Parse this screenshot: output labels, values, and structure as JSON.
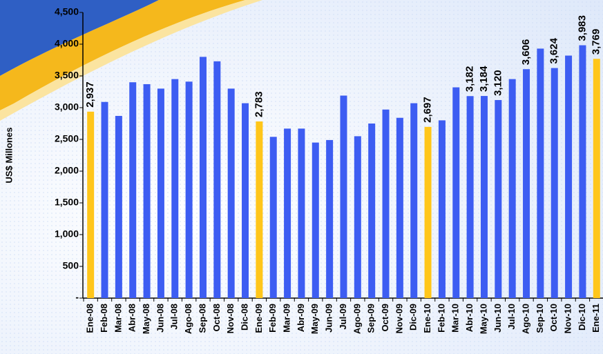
{
  "chart_data": {
    "type": "bar",
    "y_label": "US$ Millones",
    "categories": [
      "Ene-08",
      "Feb-08",
      "Mar-08",
      "Abr-08",
      "May-08",
      "Jun-08",
      "Jul-08",
      "Ago-08",
      "Sep-08",
      "Oct-08",
      "Nov-08",
      "Dic-08",
      "Ene-09",
      "Feb-09",
      "Mar-09",
      "Abr-09",
      "May-09",
      "Jun-09",
      "Jul-09",
      "Ago-09",
      "Sep-09",
      "Oct-09",
      "Nov-09",
      "Dic-09",
      "Ene-10",
      "Feb-10",
      "Mar-10",
      "Abr-10",
      "May-10",
      "Jun-10",
      "Jul-10",
      "Ago-10",
      "Sep-10",
      "Oct-10",
      "Nov-10",
      "Dic-10",
      "Ene-11"
    ],
    "values": [
      2937,
      3090,
      2870,
      3400,
      3370,
      3300,
      3450,
      3410,
      3800,
      3730,
      3300,
      3070,
      2783,
      2540,
      2670,
      2670,
      2450,
      2490,
      3190,
      2550,
      2750,
      2970,
      2840,
      3070,
      2697,
      2800,
      3320,
      3182,
      3184,
      3120,
      3450,
      3606,
      3930,
      3624,
      3820,
      3983,
      3769
    ],
    "value_labels": [
      "2,937",
      null,
      null,
      null,
      null,
      null,
      null,
      null,
      null,
      null,
      null,
      null,
      "2,783",
      null,
      null,
      null,
      null,
      null,
      null,
      null,
      null,
      null,
      null,
      null,
      "2,697",
      null,
      null,
      "3,182",
      "3,184",
      "3,120",
      null,
      "3,606",
      null,
      "3,624",
      null,
      "3,983",
      "3,769"
    ],
    "colors": [
      "#ffc61a",
      "#3d5df2",
      "#3d5df2",
      "#3d5df2",
      "#3d5df2",
      "#3d5df2",
      "#3d5df2",
      "#3d5df2",
      "#3d5df2",
      "#3d5df2",
      "#3d5df2",
      "#3d5df2",
      "#ffc61a",
      "#3d5df2",
      "#3d5df2",
      "#3d5df2",
      "#3d5df2",
      "#3d5df2",
      "#3d5df2",
      "#3d5df2",
      "#3d5df2",
      "#3d5df2",
      "#3d5df2",
      "#3d5df2",
      "#ffc61a",
      "#3d5df2",
      "#3d5df2",
      "#3d5df2",
      "#3d5df2",
      "#3d5df2",
      "#3d5df2",
      "#3d5df2",
      "#3d5df2",
      "#3d5df2",
      "#3d5df2",
      "#3d5df2",
      "#ffc61a"
    ],
    "ylim": [
      0,
      4500
    ],
    "yticks": [
      {
        "value": 0,
        "label": "-"
      },
      500,
      {
        "value": 1000,
        "label": "1,000"
      },
      {
        "value": 1500,
        "label": "1,500"
      },
      {
        "value": 2000,
        "label": "2,000"
      },
      {
        "value": 2500,
        "label": "2,500"
      },
      {
        "value": 3000,
        "label": "3,000"
      },
      {
        "value": 3500,
        "label": "3,500"
      },
      {
        "value": 4000,
        "label": "4,000"
      },
      {
        "value": 4500,
        "label": "4,500"
      }
    ],
    "grid": false
  }
}
